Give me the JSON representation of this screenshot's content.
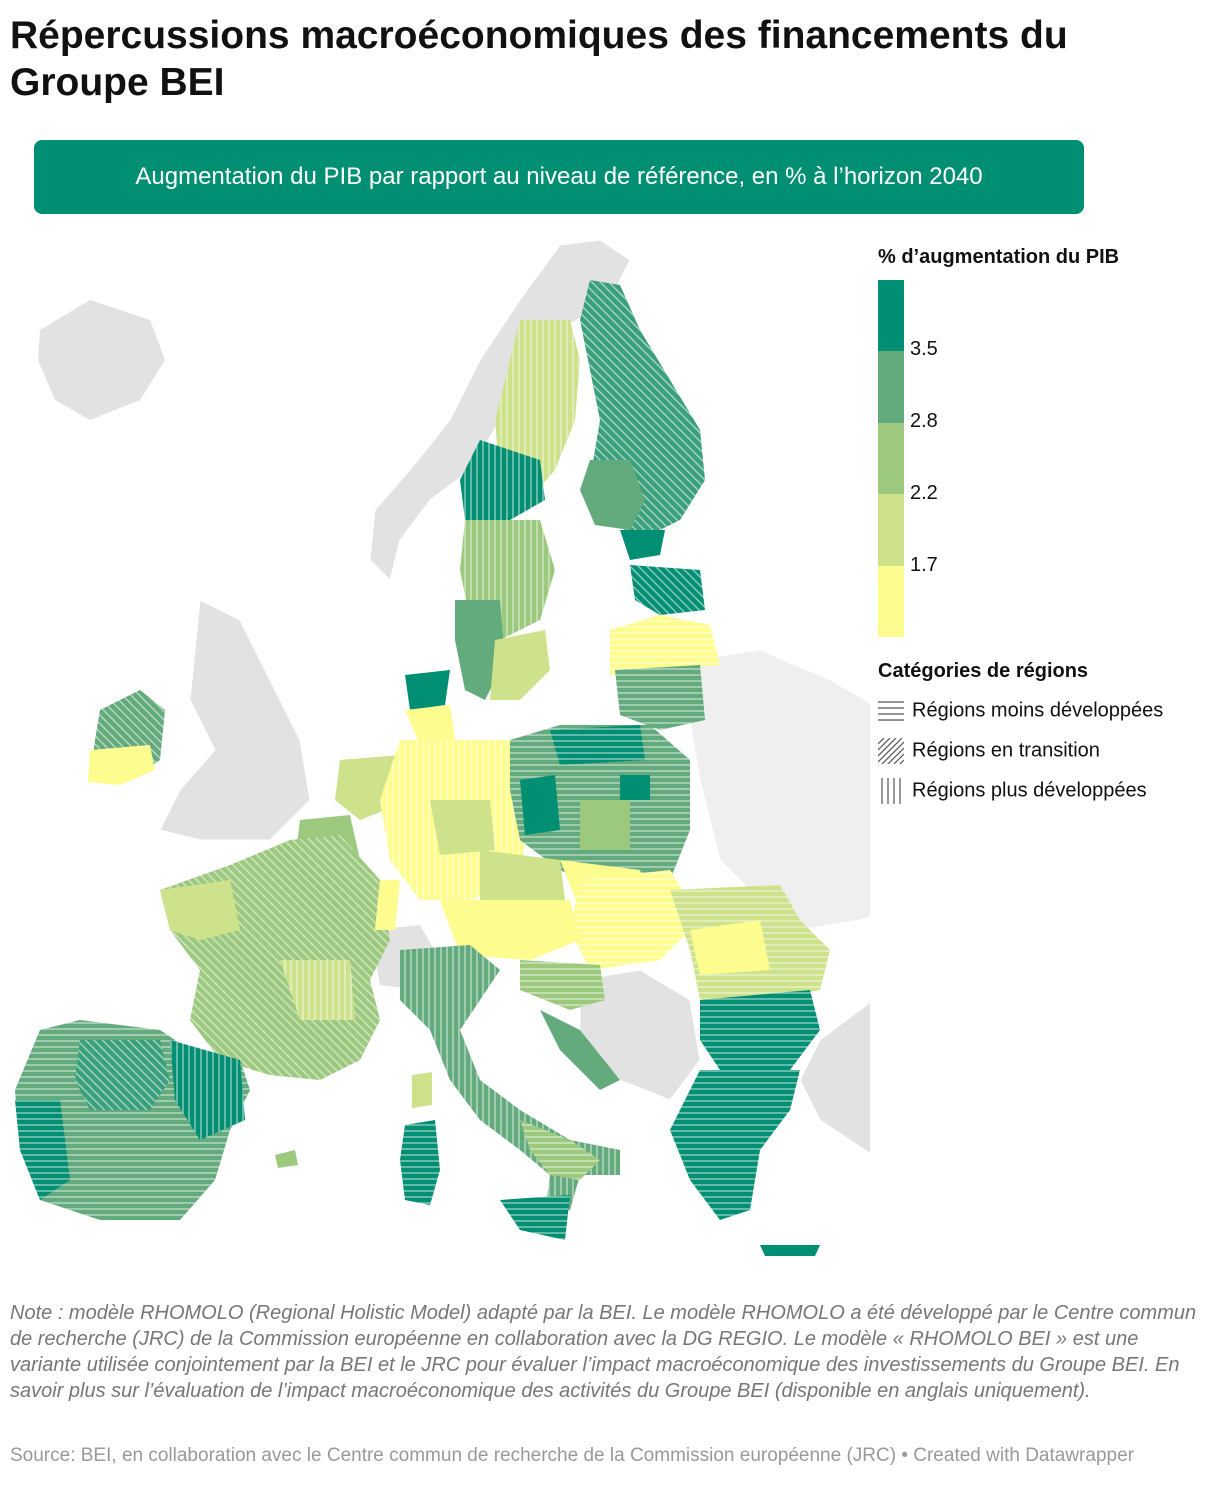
{
  "title": "Répercussions macroéconomiques des financements du Groupe BEI",
  "subtitle": "Augmentation du PIB par rapport au niveau de référence, en % à l’horizon 2040",
  "legend": {
    "title": "% d’augmentation du PIB",
    "ticks": [
      "3.5",
      "2.8",
      "2.2",
      "1.7"
    ],
    "colors": [
      "#008f72",
      "#63aa7c",
      "#9cc97e",
      "#cde28a",
      "#fdfc8f"
    ],
    "categories_title": "Catégories de régions",
    "categories": [
      {
        "label": "Régions moins développées",
        "pattern": "horizontal-lines"
      },
      {
        "label": "Régions en transition",
        "pattern": "diagonal-lines"
      },
      {
        "label": "Régions plus développées",
        "pattern": "vertical-lines"
      }
    ]
  },
  "no_data_color": "#e2e2e2",
  "note": "Note : modèle RHOMOLO (Regional Holistic Model) adapté par la BEI. Le modèle RHOMOLO a été développé par le Centre commun de recherche (JRC) de la Commission européenne en collaboration avec la DG REGIO. Le modèle « RHOMOLO BEI » est une variante utilisée conjointement par la BEI et le JRC pour évaluer l’impact macroéconomique des investissements du Groupe BEI. En savoir plus sur l’évaluation de l’impact macroéconomique des activités du Groupe BEI (disponible en anglais uniquement).",
  "source": "Source: BEI, en collaboration avec le Centre commun de recherche de la Commission européenne (JRC) • Created with Datawrapper"
}
